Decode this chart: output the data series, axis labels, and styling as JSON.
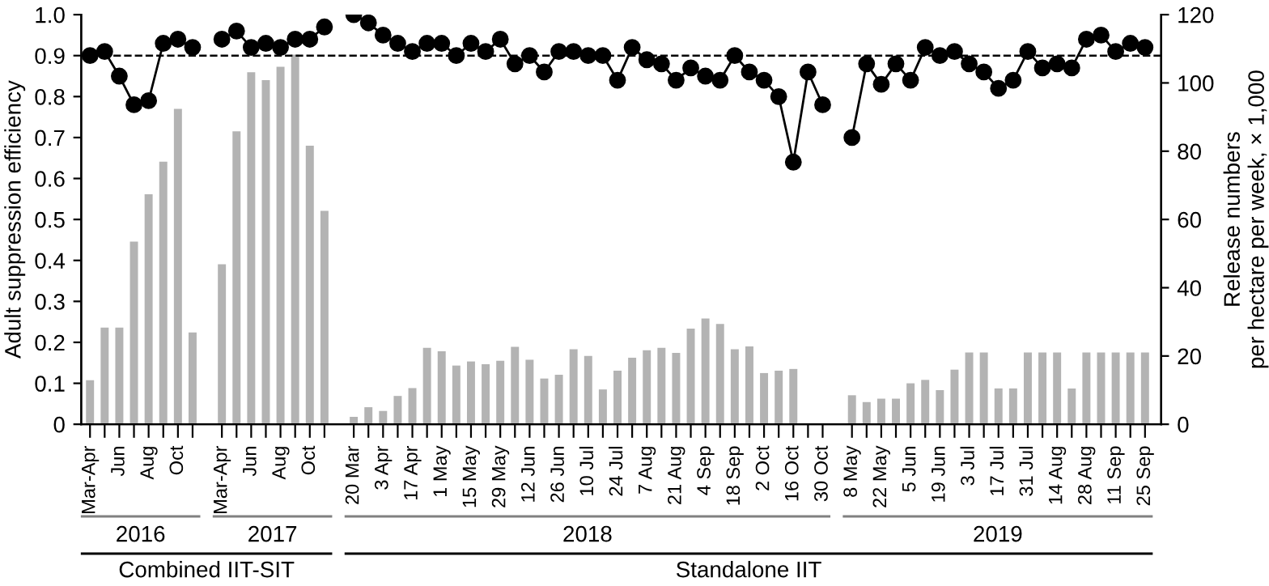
{
  "chart_data": {
    "type": "bar",
    "ylabel": "Adult suppression efficiency",
    "y2label": "Release numbers\nper hectare per week, × 1,000",
    "categories": [
      "Mar-Apr",
      null,
      "Jun",
      null,
      "Aug",
      null,
      "Oct",
      null,
      null,
      "Mar-Apr",
      null,
      "Jun",
      null,
      "Aug",
      null,
      "Oct",
      null,
      null,
      "20 Mar",
      null,
      "3 Apr",
      null,
      "17 Apr",
      null,
      "1 May",
      null,
      "15 May",
      null,
      "29 May",
      null,
      "12 Jun",
      null,
      "26 Jun",
      null,
      "10 Jul",
      null,
      "24 Jul",
      null,
      "7 Aug",
      null,
      "21 Aug",
      null,
      "4 Sep",
      null,
      "18 Sep",
      null,
      "2 Oct",
      null,
      "16 Oct",
      null,
      "30 Oct",
      null,
      "8 May",
      null,
      "22 May",
      null,
      "5 Jun",
      null,
      "19 Jun",
      null,
      "3 Jul",
      null,
      "17 Jul",
      null,
      "31 Jul",
      null,
      "14 Aug",
      null,
      "28 Aug",
      null,
      "11 Sep",
      null,
      "25 Sep"
    ],
    "series": [
      {
        "axis": "y2",
        "color": "#b3b3b3",
        "values": [
          12.9,
          28.3,
          28.3,
          53.5,
          67.4,
          76.9,
          92.4,
          26.9,
          null,
          46.9,
          85.8,
          103.1,
          100.8,
          104.7,
          108.3,
          81.6,
          62.5,
          null,
          2.2,
          5.0,
          3.9,
          8.3,
          10.6,
          22.4,
          21.4,
          17.2,
          18.4,
          17.6,
          18.6,
          22.7,
          18.9,
          13.4,
          14.5,
          22.0,
          20.0,
          10.2,
          15.7,
          19.5,
          21.7,
          22.4,
          20.9,
          28.0,
          31.0,
          29.4,
          22.0,
          22.8,
          15.0,
          15.7,
          16.2,
          null,
          null,
          null,
          8.5,
          6.5,
          7.5,
          7.5,
          12,
          13,
          10,
          16,
          21,
          21,
          10.5,
          10.5,
          21,
          21,
          21,
          10.5,
          21,
          21,
          21,
          21,
          21
        ]
      },
      {
        "type": "line",
        "axis": "y",
        "color": "#000000",
        "marker": "circle",
        "values": [
          0.9,
          0.91,
          0.85,
          0.78,
          0.79,
          0.93,
          0.94,
          0.92,
          null,
          0.94,
          0.96,
          0.92,
          0.93,
          0.92,
          0.94,
          0.94,
          0.97,
          null,
          1.0,
          0.98,
          0.95,
          0.93,
          0.91,
          0.93,
          0.93,
          0.9,
          0.93,
          0.91,
          0.94,
          0.88,
          0.9,
          0.86,
          0.91,
          0.91,
          0.9,
          0.9,
          0.84,
          0.92,
          0.89,
          0.88,
          0.84,
          0.87,
          0.85,
          0.84,
          0.9,
          0.86,
          0.84,
          0.8,
          0.64,
          0.86,
          0.78,
          null,
          0.7,
          0.88,
          0.83,
          0.88,
          0.84,
          0.92,
          0.9,
          0.91,
          0.88,
          0.86,
          0.82,
          0.84,
          0.91,
          0.87,
          0.88,
          0.87,
          0.94,
          0.95,
          0.91,
          0.93,
          0.92
        ]
      }
    ],
    "ylim": [
      0,
      1.0
    ],
    "yticks": [
      0,
      0.1,
      0.2,
      0.3,
      0.4,
      0.5,
      0.6,
      0.7,
      0.8,
      0.9,
      {
        "value": 1,
        "label": "1.0"
      }
    ],
    "y2lim": [
      0,
      120
    ],
    "y2ticks": [
      0,
      20,
      40,
      60,
      80,
      100,
      120
    ],
    "ref_lines": [
      {
        "axis": "y",
        "value": 0.9,
        "color": "#000000",
        "line_style": "dashed"
      }
    ],
    "annotations": [
      "2016",
      "2017",
      "2018",
      "2019",
      "Combined IIT-SIT",
      "Standalone IIT"
    ],
    "grid": false,
    "legend": false
  }
}
